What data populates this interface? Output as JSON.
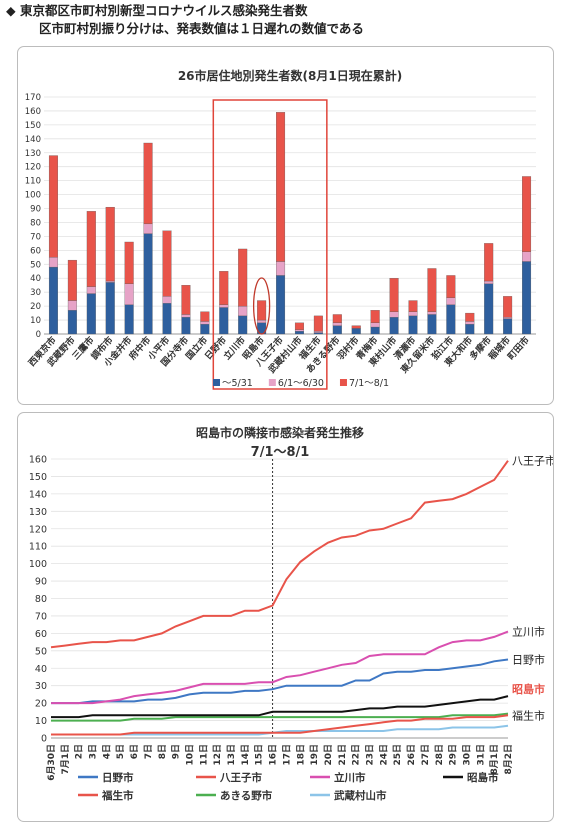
{
  "header": {
    "line1": "◆ 東京都区市町村別新型コロナウイルス感染発生者数",
    "line2": "区市町村別振り分けは、発表数値は１日遅れの数値である"
  },
  "chart_data": [
    {
      "type": "bar",
      "stacked": true,
      "title": "26市居住地別発生者数(8月1日現在累計)",
      "categories": [
        "西東京市",
        "武蔵野市",
        "三鷹市",
        "調布市",
        "小金井市",
        "府中市",
        "小平市",
        "国分寺市",
        "国立市",
        "日野市",
        "立川市",
        "昭島市",
        "八王子市",
        "武蔵村山市",
        "福生市",
        "あきる野市",
        "羽村市",
        "青梅市",
        "東村山市",
        "清瀬市",
        "東久留米市",
        "狛江市",
        "東大和市",
        "多摩市",
        "稲城市",
        "町田市"
      ],
      "series": [
        {
          "name": "～5/31",
          "color": "#2e5f9e",
          "values": [
            48,
            17,
            29,
            37,
            21,
            72,
            22,
            12,
            7,
            19,
            13,
            8,
            42,
            2,
            1,
            6,
            4,
            5,
            12,
            13,
            14,
            21,
            7,
            36,
            11,
            52
          ]
        },
        {
          "name": "6/1～6/30",
          "color": "#e6a3c7",
          "values": [
            7,
            7,
            5,
            1,
            15,
            7,
            5,
            2,
            2,
            2,
            7,
            2,
            10,
            1,
            1,
            2,
            0,
            3,
            4,
            3,
            2,
            5,
            2,
            2,
            1,
            7
          ]
        },
        {
          "name": "7/1～8/1",
          "color": "#e8544a",
          "values": [
            73,
            29,
            54,
            53,
            30,
            58,
            47,
            21,
            7,
            24,
            41,
            14,
            107,
            5,
            11,
            6,
            2,
            9,
            24,
            8,
            31,
            16,
            6,
            27,
            15,
            54
          ]
        }
      ],
      "ylim": [
        0,
        170
      ],
      "yticks": [
        0,
        10,
        20,
        30,
        40,
        50,
        60,
        70,
        80,
        90,
        100,
        110,
        120,
        130,
        140,
        150,
        160,
        170
      ],
      "legend_position": "bottom"
    },
    {
      "type": "line",
      "title": "昭島市の隣接市感染者発生推移",
      "subtitle": "7/1～8/1",
      "x": [
        "6月30日",
        "7月1日",
        "2日",
        "3日",
        "4日",
        "5日",
        "6日",
        "7日",
        "8日",
        "9日",
        "10日",
        "11日",
        "12日",
        "13日",
        "14日",
        "15日",
        "16日",
        "17日",
        "18日",
        "19日",
        "20日",
        "21日",
        "22日",
        "23日",
        "24日",
        "25日",
        "26日",
        "27日",
        "28日",
        "29日",
        "30日",
        "31日",
        "8月1日",
        "8月2日"
      ],
      "ylim": [
        0,
        160
      ],
      "yticks": [
        0,
        10,
        20,
        30,
        40,
        50,
        60,
        70,
        80,
        90,
        100,
        110,
        120,
        130,
        140,
        150,
        160
      ],
      "marker_x": "16日",
      "series": [
        {
          "name": "八王子市",
          "color": "#e8544a",
          "values": [
            52,
            53,
            54,
            55,
            55,
            56,
            56,
            58,
            60,
            64,
            67,
            70,
            70,
            70,
            73,
            73,
            76,
            91,
            101,
            107,
            112,
            115,
            116,
            119,
            120,
            123,
            126,
            135,
            136,
            137,
            140,
            144,
            148,
            159
          ]
        },
        {
          "name": "立川市",
          "color": "#d94fb0",
          "values": [
            20,
            20,
            20,
            20,
            21,
            22,
            24,
            25,
            26,
            27,
            29,
            31,
            31,
            31,
            31,
            32,
            32,
            35,
            36,
            38,
            40,
            42,
            43,
            47,
            48,
            48,
            48,
            48,
            52,
            55,
            56,
            56,
            58,
            61
          ]
        },
        {
          "name": "日野市",
          "color": "#3f78c4",
          "values": [
            20,
            20,
            20,
            21,
            21,
            21,
            21,
            22,
            22,
            23,
            25,
            26,
            26,
            26,
            27,
            27,
            28,
            30,
            30,
            30,
            30,
            30,
            33,
            33,
            37,
            38,
            38,
            39,
            39,
            40,
            41,
            42,
            44,
            45
          ]
        },
        {
          "name": "昭島市",
          "color": "#111111",
          "values": [
            12,
            12,
            12,
            13,
            13,
            13,
            13,
            13,
            13,
            13,
            13,
            13,
            13,
            13,
            13,
            13,
            15,
            15,
            15,
            15,
            15,
            15,
            16,
            17,
            17,
            18,
            18,
            18,
            19,
            20,
            21,
            22,
            22,
            24
          ]
        },
        {
          "name": "福生市",
          "color": "#e8544a",
          "values": [
            2,
            2,
            2,
            2,
            2,
            2,
            3,
            3,
            3,
            3,
            3,
            3,
            3,
            3,
            3,
            3,
            3,
            3,
            3,
            4,
            5,
            6,
            7,
            8,
            9,
            10,
            10,
            11,
            11,
            11,
            12,
            12,
            12,
            13
          ]
        },
        {
          "name": "あきる野市",
          "color": "#4caf50",
          "values": [
            10,
            10,
            10,
            10,
            10,
            10,
            11,
            11,
            11,
            12,
            12,
            12,
            12,
            12,
            12,
            12,
            12,
            12,
            12,
            12,
            12,
            12,
            12,
            12,
            12,
            12,
            12,
            12,
            12,
            13,
            13,
            13,
            13,
            14
          ]
        },
        {
          "name": "武蔵村山市",
          "color": "#8cc4e8",
          "values": [
            2,
            2,
            2,
            2,
            2,
            2,
            2,
            2,
            2,
            2,
            2,
            2,
            2,
            2,
            2,
            2,
            3,
            4,
            4,
            4,
            4,
            4,
            4,
            4,
            4,
            5,
            5,
            5,
            5,
            6,
            6,
            6,
            6,
            7
          ]
        }
      ],
      "end_labels": [
        {
          "series": "八王子市",
          "text": "八王子市",
          "color": "#222222"
        },
        {
          "series": "立川市",
          "text": "立川市",
          "color": "#222222"
        },
        {
          "series": "日野市",
          "text": "日野市",
          "color": "#222222"
        },
        {
          "series": "昭島市",
          "text": "昭島市",
          "color": "#e8544a"
        },
        {
          "series": "福生市",
          "text": "福生市",
          "color": "#222222"
        }
      ],
      "legend_position": "bottom"
    }
  ]
}
